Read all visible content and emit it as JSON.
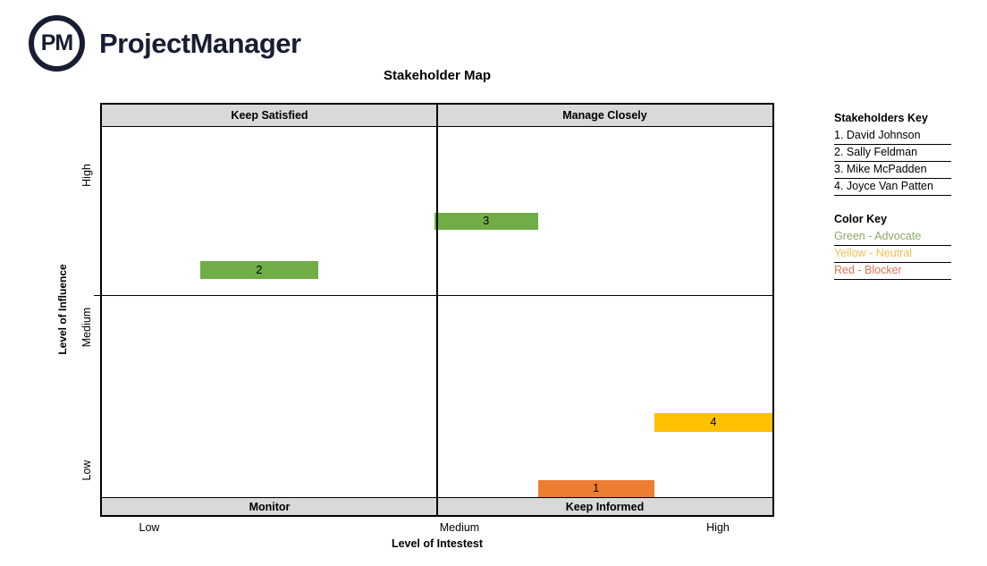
{
  "brand": {
    "logo_monogram": "PM",
    "name": "ProjectManager",
    "color": "#191d33"
  },
  "page_title": "Stakeholder Map",
  "chart_data": {
    "type": "bar",
    "title": "Stakeholder Map",
    "xlabel": "Level of Intestest",
    "ylabel": "Level of Influence",
    "x_tick_labels": [
      "Low",
      "Medium",
      "High"
    ],
    "y_tick_labels": [
      "High",
      "Medium",
      "Low"
    ],
    "grid": false,
    "quadrant_labels": {
      "top_left": "Keep Satisfied",
      "top_right": "Manage Closely",
      "bottom_left": "Monitor",
      "bottom_right": "Keep Informed"
    },
    "band_color": "#d9d9d9",
    "bars": [
      {
        "label": "1",
        "stakeholder": "David Johnson",
        "stance": "Blocker",
        "color": "#ed7d31",
        "interest": "Medium-High",
        "influence": "Low",
        "x0_pct": 65.0,
        "x1_pct": 82.4,
        "y0_pct": 91.4,
        "y1_pct": 95.7
      },
      {
        "label": "2",
        "stakeholder": "Sally Feldman",
        "stance": "Advocate",
        "color": "#70ad47",
        "interest": "Low-Medium",
        "influence": "Medium-High",
        "x0_pct": 14.7,
        "x1_pct": 32.2,
        "y0_pct": 38.2,
        "y1_pct": 42.5
      },
      {
        "label": "3",
        "stakeholder": "Mike McPadden",
        "stance": "Advocate",
        "color": "#70ad47",
        "interest": "Medium",
        "influence": "High",
        "x0_pct": 49.6,
        "x1_pct": 65.0,
        "y0_pct": 26.3,
        "y1_pct": 30.5
      },
      {
        "label": "4",
        "stakeholder": "Joyce Van Patten",
        "stance": "Neutral",
        "color": "#ffc000",
        "interest": "High",
        "influence": "Low-Medium",
        "x0_pct": 82.4,
        "x1_pct": 100.0,
        "y0_pct": 75.2,
        "y1_pct": 79.7
      }
    ]
  },
  "stakeholders_key": {
    "heading": "Stakeholders Key",
    "items": [
      "1. David Johnson",
      "2. Sally Feldman",
      "3. Mike McPadden",
      "4. Joyce Van Patten"
    ]
  },
  "color_key": {
    "heading": "Color Key",
    "items": [
      {
        "label": "Green - Advocate",
        "color": "#8aa965"
      },
      {
        "label": "Yellow - Neutral",
        "color": "#efbf4e"
      },
      {
        "label": "Red - Blocker",
        "color": "#dd7455"
      }
    ]
  }
}
